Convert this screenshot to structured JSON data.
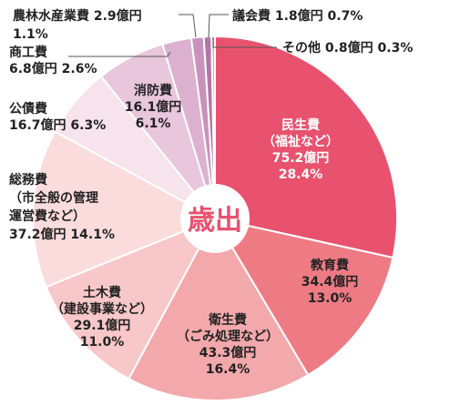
{
  "chart_data": {
    "type": "pie",
    "center_label": "歳出",
    "slices": [
      {
        "lines": [
          "民生費",
          "（福祉など）",
          "75.2億円",
          "28.4%"
        ],
        "value": 75.2,
        "percent": 28.4,
        "color": "#e8526e",
        "text_color": "#ffffff"
      },
      {
        "lines": [
          "教育費",
          "34.4億円",
          "13.0%"
        ],
        "value": 34.4,
        "percent": 13.0,
        "color": "#ee7b84",
        "text_color": "#222222"
      },
      {
        "lines": [
          "衛生費",
          "（ごみ処理など）",
          "43.3億円",
          "16.4%"
        ],
        "value": 43.3,
        "percent": 16.4,
        "color": "#f3a8ac",
        "text_color": "#222222"
      },
      {
        "lines": [
          "土木費",
          "（建設事業など）",
          "29.1億円",
          "11.0%"
        ],
        "value": 29.1,
        "percent": 11.0,
        "color": "#f7c7c9",
        "text_color": "#222222"
      },
      {
        "lines": [
          "総務費",
          "（市全般の管理",
          "運営費など）",
          "37.2億円 14.1%"
        ],
        "value": 37.2,
        "percent": 14.1,
        "color": "#fbdcdd",
        "text_color": "#222222"
      },
      {
        "lines": [
          "公債費",
          "16.7億円 6.3%"
        ],
        "value": 16.7,
        "percent": 6.3,
        "color": "#f6e3ec",
        "text_color": "#222222"
      },
      {
        "lines": [
          "消防費",
          "16.1億円",
          "6.1%"
        ],
        "value": 16.1,
        "percent": 6.1,
        "color": "#e8c6dc",
        "text_color": "#222222"
      },
      {
        "lines": [
          "商工費",
          "6.8億円 2.6%"
        ],
        "value": 6.8,
        "percent": 2.6,
        "color": "#dbb1cf",
        "text_color": "#222222"
      },
      {
        "lines": [
          "農林水産業費 2.9億円",
          "1.1%"
        ],
        "value": 2.9,
        "percent": 1.1,
        "color": "#c992bd",
        "text_color": "#222222"
      },
      {
        "lines": [
          "議会費 1.8億円 0.7%"
        ],
        "value": 1.8,
        "percent": 0.7,
        "color": "#b176a6",
        "text_color": "#222222"
      },
      {
        "lines": [
          "その他 0.8億円 0.3%"
        ],
        "value": 0.8,
        "percent": 0.3,
        "color": "#d9a7c8",
        "text_color": "#222222"
      }
    ]
  }
}
